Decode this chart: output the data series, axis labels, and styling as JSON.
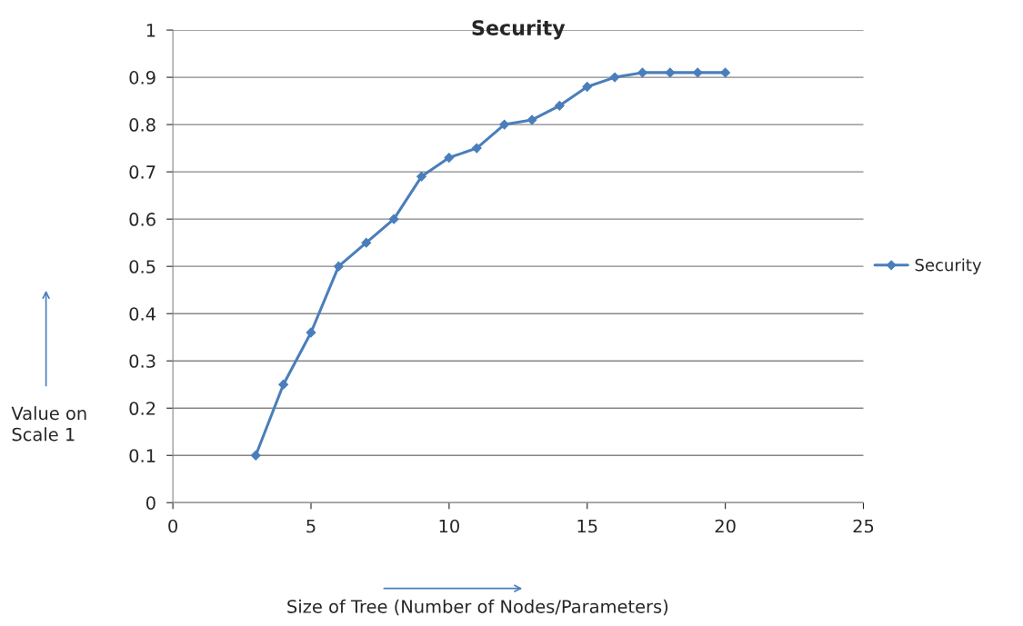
{
  "chart_data": {
    "type": "line",
    "title": "Security",
    "xlabel": "Size of Tree (Number of Nodes/Parameters)",
    "ylabel": "Value on\nScale 1",
    "x": [
      3,
      4,
      5,
      6,
      7,
      8,
      9,
      10,
      11,
      12,
      13,
      14,
      15,
      16,
      17,
      18,
      19,
      20
    ],
    "series": [
      {
        "name": "Security",
        "color": "#4a7ebb",
        "values": [
          0.1,
          0.25,
          0.36,
          0.5,
          0.55,
          0.6,
          0.69,
          0.73,
          0.75,
          0.8,
          0.81,
          0.84,
          0.88,
          0.9,
          0.91,
          0.91,
          0.91,
          0.91
        ]
      }
    ],
    "xlim": [
      0,
      25
    ],
    "xticks": [
      0,
      5,
      10,
      15,
      20,
      25
    ],
    "ylim": [
      0,
      1
    ],
    "yticks": [
      0,
      0.1,
      0.2,
      0.3,
      0.4,
      0.5,
      0.6,
      0.7,
      0.8,
      0.9,
      1
    ],
    "grid": "y",
    "legend": "right",
    "marker": "diamond",
    "line_style": "solid"
  }
}
